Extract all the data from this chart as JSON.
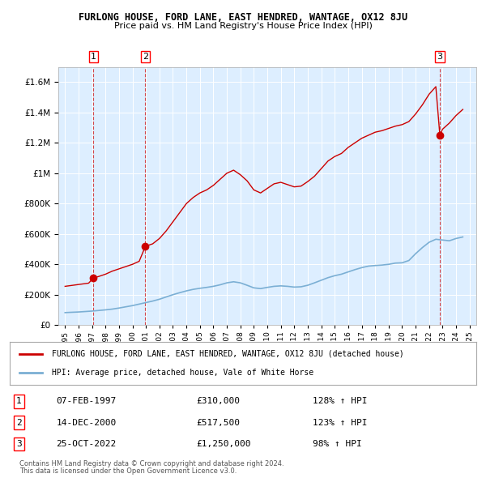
{
  "title": "FURLONG HOUSE, FORD LANE, EAST HENDRED, WANTAGE, OX12 8JU",
  "subtitle": "Price paid vs. HM Land Registry's House Price Index (HPI)",
  "legend_line1": "FURLONG HOUSE, FORD LANE, EAST HENDRED, WANTAGE, OX12 8JU (detached house)",
  "legend_line2": "HPI: Average price, detached house, Vale of White Horse",
  "footer1": "Contains HM Land Registry data © Crown copyright and database right 2024.",
  "footer2": "This data is licensed under the Open Government Licence v3.0.",
  "transactions": [
    {
      "num": 1,
      "date": "07-FEB-1997",
      "price": 310000,
      "pct": "128%",
      "dir": "↑",
      "x": 1997.1
    },
    {
      "num": 2,
      "date": "14-DEC-2000",
      "price": 517500,
      "pct": "123%",
      "dir": "↑",
      "x": 2000.95
    },
    {
      "num": 3,
      "date": "25-OCT-2022",
      "price": 1250000,
      "pct": "98%",
      "dir": "↑",
      "x": 2022.8
    }
  ],
  "hpi_color": "#7bafd4",
  "price_color": "#cc0000",
  "background_plot": "#ddeeff",
  "background_fig": "#ffffff",
  "ylim": [
    0,
    1700000
  ],
  "xlim_left": 1994.5,
  "xlim_right": 2025.5,
  "hpi_x": [
    1995,
    1995.5,
    1996,
    1996.5,
    1997,
    1997.5,
    1998,
    1998.5,
    1999,
    1999.5,
    2000,
    2000.5,
    2001,
    2001.5,
    2002,
    2002.5,
    2003,
    2003.5,
    2004,
    2004.5,
    2005,
    2005.5,
    2006,
    2006.5,
    2007,
    2007.5,
    2008,
    2008.5,
    2009,
    2009.5,
    2010,
    2010.5,
    2011,
    2011.5,
    2012,
    2012.5,
    2013,
    2013.5,
    2014,
    2014.5,
    2015,
    2015.5,
    2016,
    2016.5,
    2017,
    2017.5,
    2018,
    2018.5,
    2019,
    2019.5,
    2020,
    2020.5,
    2021,
    2021.5,
    2022,
    2022.5,
    2023,
    2023.5,
    2024,
    2024.5
  ],
  "hpi_y": [
    82000,
    84000,
    86000,
    89000,
    92000,
    96000,
    100000,
    105000,
    112000,
    120000,
    128000,
    138000,
    148000,
    158000,
    170000,
    185000,
    200000,
    213000,
    225000,
    235000,
    242000,
    248000,
    255000,
    265000,
    278000,
    285000,
    278000,
    262000,
    245000,
    240000,
    248000,
    255000,
    258000,
    255000,
    250000,
    252000,
    262000,
    278000,
    295000,
    312000,
    325000,
    335000,
    350000,
    365000,
    378000,
    388000,
    392000,
    395000,
    400000,
    408000,
    410000,
    425000,
    470000,
    510000,
    545000,
    565000,
    560000,
    555000,
    570000,
    580000
  ],
  "red_x": [
    1995.0,
    1995.25,
    1995.5,
    1995.75,
    1996.0,
    1996.25,
    1996.5,
    1996.75,
    1997.1,
    1997.5,
    1998.0,
    1998.5,
    1999.0,
    1999.5,
    2000.0,
    2000.5,
    2000.95,
    2001.0,
    2001.5,
    2002.0,
    2002.5,
    2003.0,
    2003.5,
    2004.0,
    2004.5,
    2005.0,
    2005.5,
    2006.0,
    2006.5,
    2007.0,
    2007.5,
    2008.0,
    2008.5,
    2009.0,
    2009.5,
    2010.0,
    2010.5,
    2011.0,
    2011.5,
    2012.0,
    2012.5,
    2013.0,
    2013.5,
    2014.0,
    2014.5,
    2015.0,
    2015.5,
    2016.0,
    2016.5,
    2017.0,
    2017.5,
    2018.0,
    2018.5,
    2019.0,
    2019.5,
    2020.0,
    2020.5,
    2021.0,
    2021.5,
    2022.0,
    2022.5,
    2022.8,
    2023.0,
    2023.5,
    2024.0,
    2024.5
  ],
  "red_y": [
    255000,
    258000,
    261000,
    264000,
    267000,
    270000,
    273000,
    276000,
    310000,
    320000,
    335000,
    355000,
    370000,
    385000,
    400000,
    420000,
    517500,
    520000,
    535000,
    570000,
    620000,
    680000,
    740000,
    800000,
    840000,
    870000,
    890000,
    920000,
    960000,
    1000000,
    1020000,
    990000,
    950000,
    890000,
    870000,
    900000,
    930000,
    940000,
    925000,
    910000,
    915000,
    945000,
    980000,
    1030000,
    1080000,
    1110000,
    1130000,
    1170000,
    1200000,
    1230000,
    1250000,
    1270000,
    1280000,
    1295000,
    1310000,
    1320000,
    1340000,
    1390000,
    1450000,
    1520000,
    1570000,
    1250000,
    1290000,
    1330000,
    1380000,
    1420000
  ]
}
